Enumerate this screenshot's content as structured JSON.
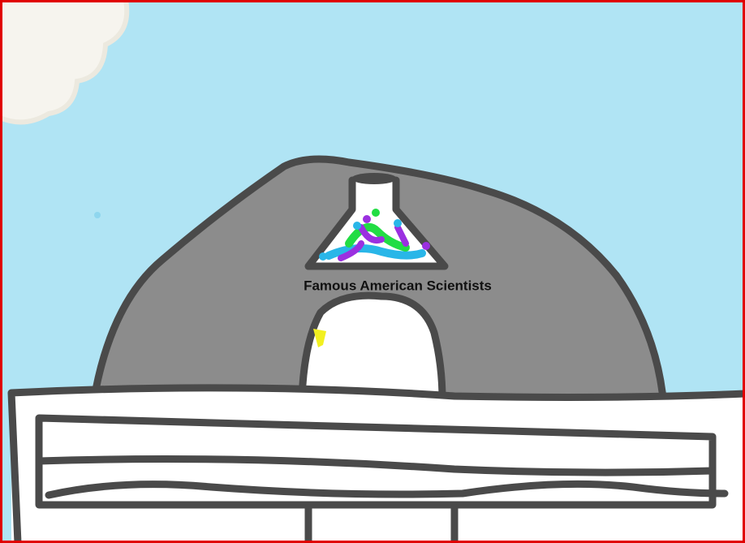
{
  "scene": {
    "label": "Famous American Scientists"
  }
}
